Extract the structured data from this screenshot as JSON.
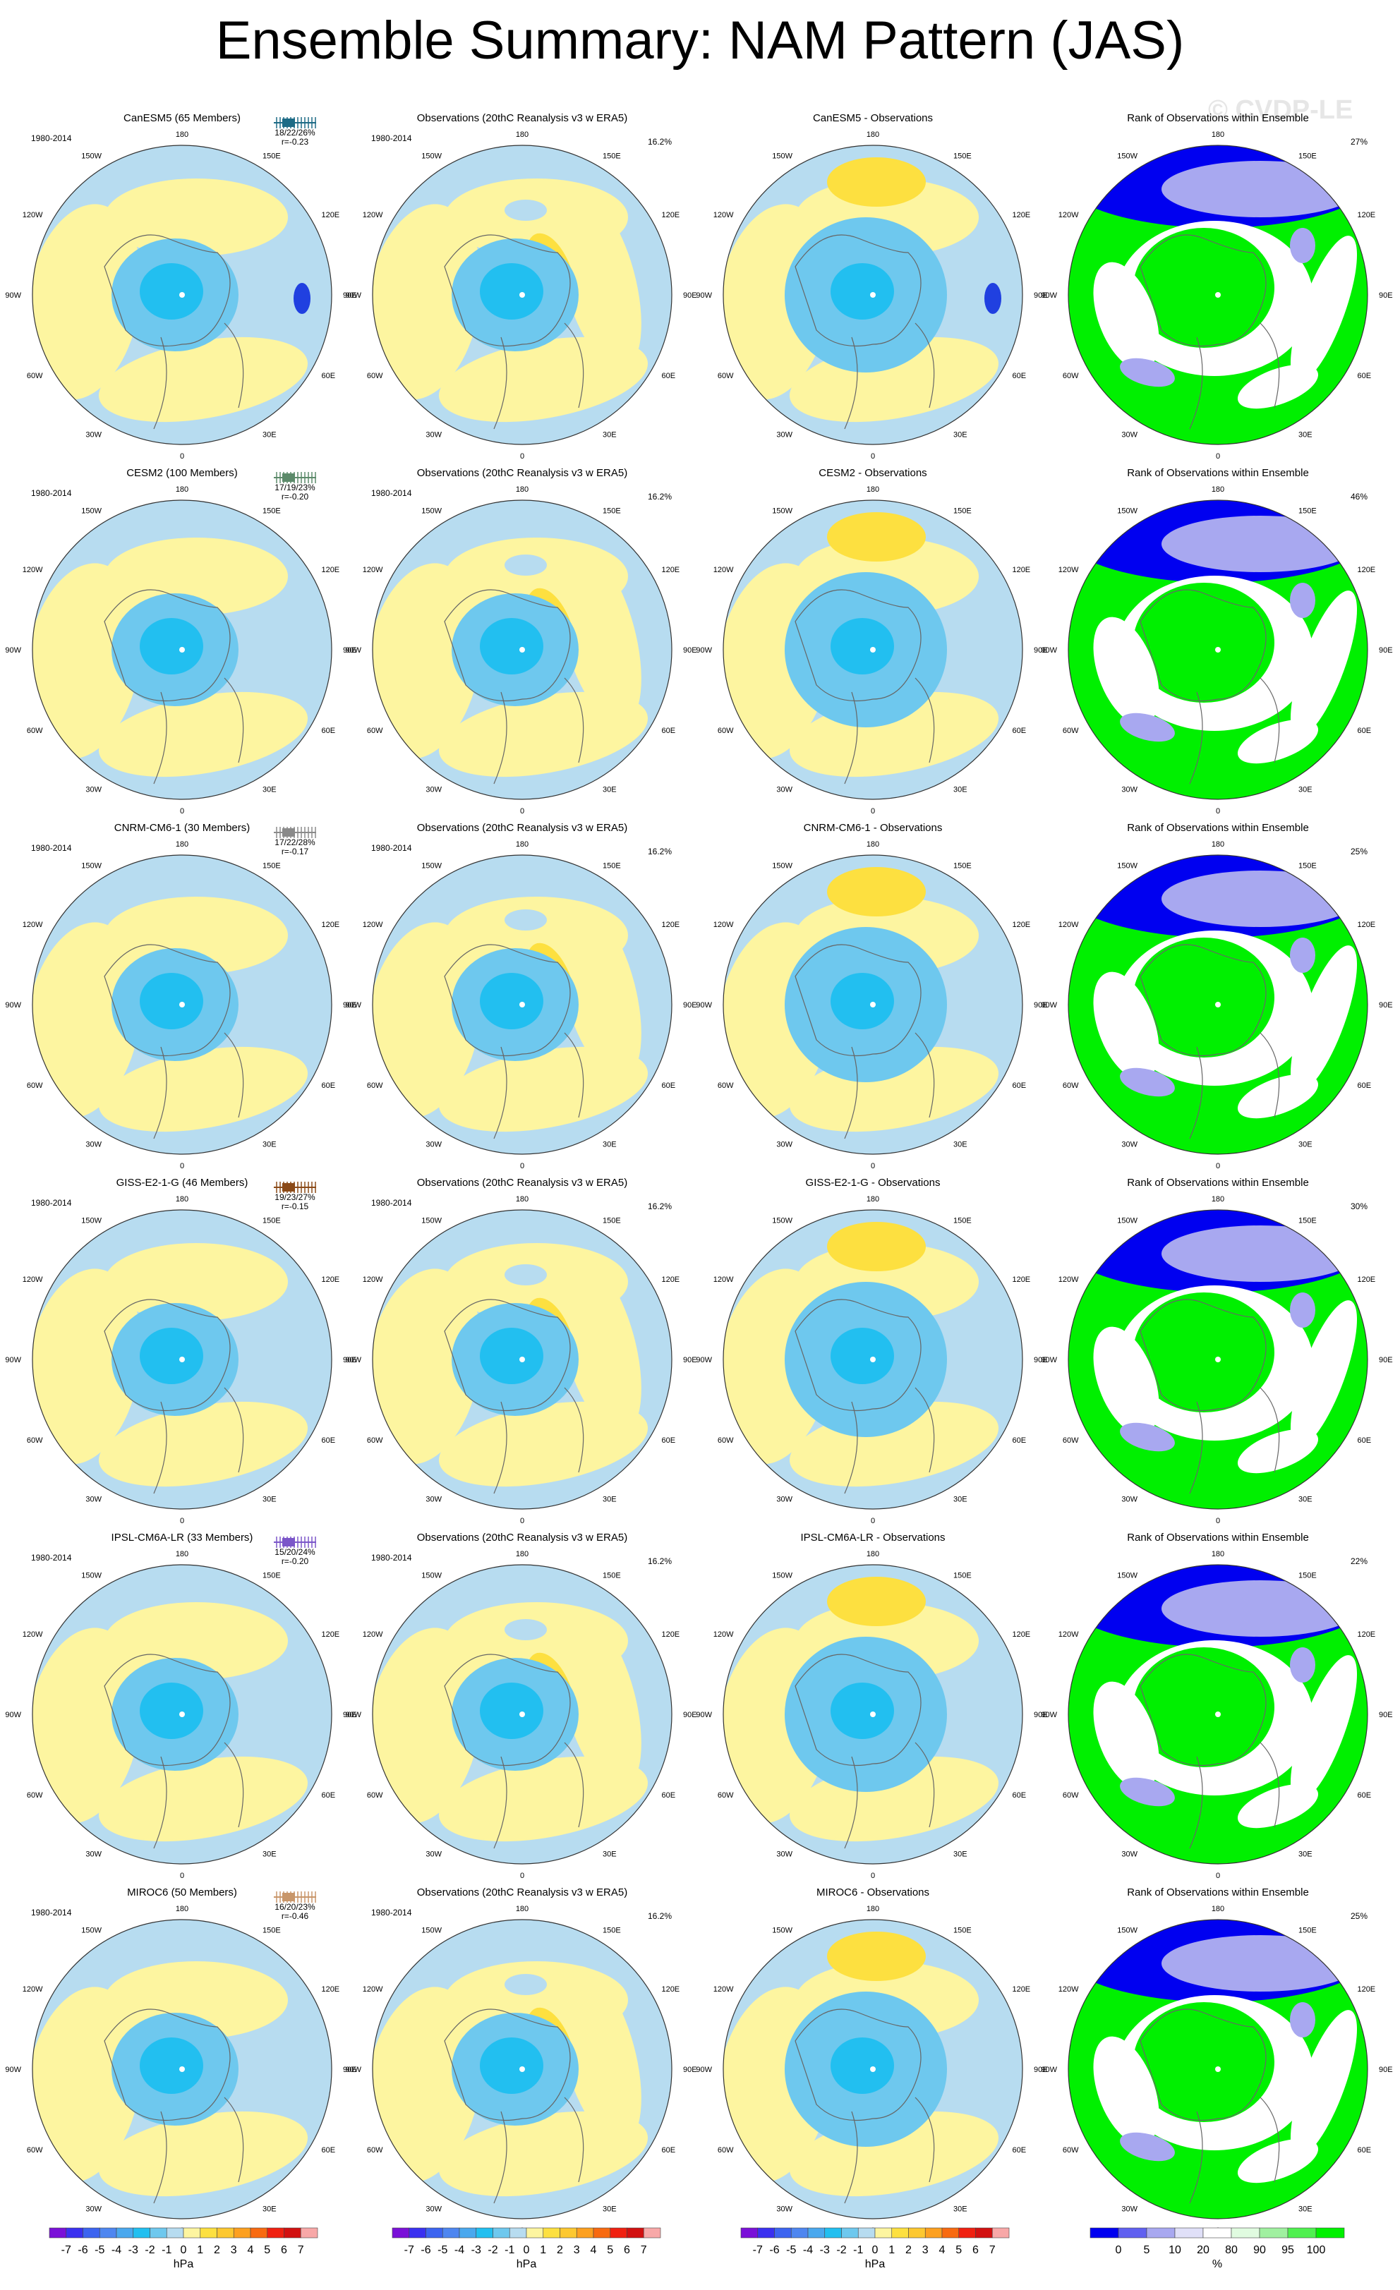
{
  "title": "Ensemble Summary: NAM Pattern (JAS)",
  "watermark": "© CVDP-LE",
  "period": "1980-2014",
  "obs_title": "Observations (20thC Reanalysis v3 w ERA5)",
  "obs_variance": "16.2%",
  "rank_title": "Rank of Observations within Ensemble",
  "lon_labels": [
    "180",
    "150E",
    "120E",
    "90E",
    "60E",
    "30E",
    "0",
    "30W",
    "60W",
    "90W",
    "120W",
    "150W"
  ],
  "models": [
    {
      "name": "CanESM5 (65 Members)",
      "short": "CanESM5",
      "color": "#1d6b86",
      "stats": "18/22/26%",
      "r": "r=-0.23",
      "rank_pct": "27%"
    },
    {
      "name": "CESM2 (100 Members)",
      "short": "CESM2",
      "color": "#5c8a6a",
      "stats": "17/19/23%",
      "r": "r=-0.20",
      "rank_pct": "46%"
    },
    {
      "name": "CNRM-CM6-1 (30 Members)",
      "short": "CNRM-CM6-1",
      "color": "#8a8a8a",
      "stats": "17/22/28%",
      "r": "r=-0.17",
      "rank_pct": "25%"
    },
    {
      "name": "GISS-E2-1-G (46 Members)",
      "short": "GISS-E2-1-G",
      "color": "#8b4a18",
      "stats": "19/23/27%",
      "r": "r=-0.15",
      "rank_pct": "30%"
    },
    {
      "name": "IPSL-CM6A-LR (33 Members)",
      "short": "IPSL-CM6A-LR",
      "color": "#7b56c9",
      "stats": "15/20/24%",
      "r": "r=-0.20",
      "rank_pct": "22%"
    },
    {
      "name": "MIROC6 (50 Members)",
      "short": "MIROC6",
      "color": "#c8966a",
      "stats": "16/20/23%",
      "r": "r=-0.46",
      "rank_pct": "25%"
    }
  ],
  "diff_suffix": " - Observations",
  "colorbars": {
    "hpa": {
      "labels": [
        "-7",
        "-6",
        "-5",
        "-4",
        "-3",
        "-2",
        "-1",
        "0",
        "1",
        "2",
        "3",
        "4",
        "5",
        "6",
        "7"
      ],
      "colors": [
        "#7a10d8",
        "#3a30f0",
        "#3c64f0",
        "#4e86f0",
        "#4aa8ee",
        "#22bff0",
        "#6ec8ee",
        "#b7dcf0",
        "#fdf5a0",
        "#fde040",
        "#fdc830",
        "#fda020",
        "#f86a10",
        "#f02010",
        "#d21010",
        "#f8a8a8"
      ],
      "unit": "hPa"
    },
    "pct": {
      "labels": [
        "0",
        "5",
        "10",
        "20",
        "80",
        "90",
        "95",
        "100"
      ],
      "colors": [
        "#0000f0",
        "#6060f0",
        "#a8a8f0",
        "#e0e0f8",
        "#ffffff",
        "#e0fbe0",
        "#a0f0a0",
        "#50f050",
        "#00f000"
      ],
      "unit": "%"
    }
  },
  "palette": {
    "pos_light": "#fdf5a0",
    "pos_mid": "#fde040",
    "neg_light": "#b7dcf0",
    "neg_mid": "#6ec8ee",
    "neg_strong": "#22bff0",
    "rank_green": "#00f000",
    "rank_blue": "#0000f0",
    "rank_lightblue": "#a8a8f0"
  }
}
